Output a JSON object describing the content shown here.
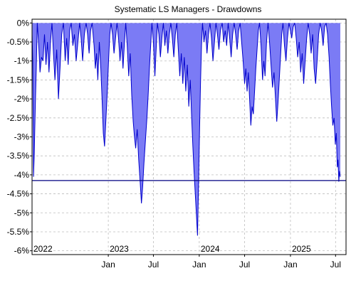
{
  "chart_data": {
    "type": "area",
    "title": "Systematic LS Managers - Drawdowns",
    "xlabel": "",
    "ylabel": "",
    "x_range": [
      "2022-03-01",
      "2025-08-12"
    ],
    "ylim": [
      -6.1,
      0.1
    ],
    "yticks": [
      {
        "value": 0,
        "label": "0%"
      },
      {
        "value": -0.5,
        "label": "-0.5%"
      },
      {
        "value": -1,
        "label": "-1%"
      },
      {
        "value": -1.5,
        "label": "-1.5%"
      },
      {
        "value": -2,
        "label": "-2%"
      },
      {
        "value": -2.5,
        "label": "-2.5%"
      },
      {
        "value": -3,
        "label": "-3%"
      },
      {
        "value": -3.5,
        "label": "-3.5%"
      },
      {
        "value": -4,
        "label": "-4%"
      },
      {
        "value": -4.5,
        "label": "-4.5%"
      },
      {
        "value": -5,
        "label": "-5%"
      },
      {
        "value": -5.5,
        "label": "-5.5%"
      },
      {
        "value": -6,
        "label": "-6%"
      }
    ],
    "xticks": [
      {
        "date": "2023-01-01",
        "label": "Jan"
      },
      {
        "date": "2023-07-01",
        "label": "Jul"
      },
      {
        "date": "2024-01-01",
        "label": "Jan"
      },
      {
        "date": "2024-07-01",
        "label": "Jul"
      },
      {
        "date": "2025-01-01",
        "label": "Jan"
      },
      {
        "date": "2025-07-01",
        "label": "Jul"
      }
    ],
    "year_labels": [
      {
        "date": "2022-03-01",
        "label": "2022"
      },
      {
        "date": "2023-01-01",
        "label": "2023"
      },
      {
        "date": "2024-01-01",
        "label": "2024"
      },
      {
        "date": "2025-01-01",
        "label": "2025"
      }
    ],
    "reference_line": {
      "value": -4.15
    },
    "grid": true,
    "colors": {
      "fill": "#7b7bf5",
      "line": "#0000cc",
      "reference": "#000080",
      "grid": "#bdbdbd"
    },
    "series": [
      {
        "points": [
          [
            "2022-03-01",
            -0.3
          ],
          [
            "2022-03-04",
            -1.0
          ],
          [
            "2022-03-07",
            -4.05
          ],
          [
            "2022-03-10",
            -3.4
          ],
          [
            "2022-03-14",
            -2.2
          ],
          [
            "2022-03-18",
            -1.2
          ],
          [
            "2022-03-22",
            0
          ],
          [
            "2022-03-28",
            -0.6
          ],
          [
            "2022-04-02",
            -1.3
          ],
          [
            "2022-04-08",
            -0.9
          ],
          [
            "2022-04-14",
            -1.0
          ],
          [
            "2022-04-20",
            -0.3
          ],
          [
            "2022-04-26",
            -1.1
          ],
          [
            "2022-05-02",
            -0.5
          ],
          [
            "2022-05-08",
            -1.3
          ],
          [
            "2022-05-14",
            -0.5
          ],
          [
            "2022-05-20",
            0
          ],
          [
            "2022-05-26",
            -0.8
          ],
          [
            "2022-06-01",
            -1.5
          ],
          [
            "2022-06-08",
            -0.7
          ],
          [
            "2022-06-15",
            -2.0
          ],
          [
            "2022-06-22",
            -1.1
          ],
          [
            "2022-06-28",
            -0.3
          ],
          [
            "2022-07-05",
            0
          ],
          [
            "2022-07-12",
            -1.0
          ],
          [
            "2022-07-18",
            -0.4
          ],
          [
            "2022-07-24",
            -1.1
          ],
          [
            "2022-07-30",
            -0.2
          ],
          [
            "2022-08-05",
            0
          ],
          [
            "2022-08-12",
            -0.6
          ],
          [
            "2022-08-18",
            -0.3
          ],
          [
            "2022-08-25",
            -1.0
          ],
          [
            "2022-09-01",
            -0.5
          ],
          [
            "2022-09-08",
            0
          ],
          [
            "2022-09-14",
            -0.4
          ],
          [
            "2022-09-20",
            -1.0
          ],
          [
            "2022-09-27",
            -0.3
          ],
          [
            "2022-10-04",
            0
          ],
          [
            "2022-10-10",
            -0.3
          ],
          [
            "2022-10-16",
            -0.8
          ],
          [
            "2022-10-22",
            -0.2
          ],
          [
            "2022-10-28",
            0
          ],
          [
            "2022-11-05",
            -0.6
          ],
          [
            "2022-11-10",
            -1.2
          ],
          [
            "2022-11-15",
            -0.8
          ],
          [
            "2022-11-20",
            -1.5
          ],
          [
            "2022-11-26",
            -0.5
          ],
          [
            "2022-12-02",
            -1.2
          ],
          [
            "2022-12-07",
            -2.0
          ],
          [
            "2022-12-12",
            -2.9
          ],
          [
            "2022-12-17",
            -3.25
          ],
          [
            "2022-12-22",
            -2.6
          ],
          [
            "2022-12-28",
            -1.8
          ],
          [
            "2023-01-02",
            -1.0
          ],
          [
            "2023-01-07",
            -0.3
          ],
          [
            "2023-01-12",
            0
          ],
          [
            "2023-01-18",
            -0.3
          ],
          [
            "2023-01-24",
            -0.8
          ],
          [
            "2023-01-30",
            -0.4
          ],
          [
            "2023-02-05",
            0
          ],
          [
            "2023-02-11",
            -0.4
          ],
          [
            "2023-02-17",
            -1.0
          ],
          [
            "2023-02-23",
            -0.5
          ],
          [
            "2023-03-01",
            -1.2
          ],
          [
            "2023-03-07",
            -0.5
          ],
          [
            "2023-03-12",
            0
          ],
          [
            "2023-03-18",
            -0.6
          ],
          [
            "2023-03-24",
            -1.4
          ],
          [
            "2023-03-30",
            -0.8
          ],
          [
            "2023-04-05",
            -1.9
          ],
          [
            "2023-04-11",
            -2.6
          ],
          [
            "2023-04-16",
            -3.0
          ],
          [
            "2023-04-21",
            -3.3
          ],
          [
            "2023-04-27",
            -2.8
          ],
          [
            "2023-05-03",
            -3.6
          ],
          [
            "2023-05-09",
            -4.2
          ],
          [
            "2023-05-14",
            -4.75
          ],
          [
            "2023-05-19",
            -4.3
          ],
          [
            "2023-05-24",
            -3.7
          ],
          [
            "2023-05-30",
            -3.1
          ],
          [
            "2023-06-05",
            -2.5
          ],
          [
            "2023-06-10",
            -1.9
          ],
          [
            "2023-06-15",
            -1.2
          ],
          [
            "2023-06-20",
            -0.6
          ],
          [
            "2023-06-25",
            0
          ],
          [
            "2023-07-01",
            -0.5
          ],
          [
            "2023-07-07",
            -1.4
          ],
          [
            "2023-07-12",
            -0.7
          ],
          [
            "2023-07-17",
            0
          ],
          [
            "2023-07-23",
            -0.3
          ],
          [
            "2023-07-29",
            -0.9
          ],
          [
            "2023-08-04",
            -0.4
          ],
          [
            "2023-08-10",
            0
          ],
          [
            "2023-08-16",
            -0.6
          ],
          [
            "2023-08-22",
            -0.2
          ],
          [
            "2023-08-28",
            -0.8
          ],
          [
            "2023-09-03",
            -0.3
          ],
          [
            "2023-09-09",
            0
          ],
          [
            "2023-09-15",
            -0.4
          ],
          [
            "2023-09-21",
            -0.9
          ],
          [
            "2023-09-27",
            -0.3
          ],
          [
            "2023-10-03",
            0
          ],
          [
            "2023-10-09",
            -0.7
          ],
          [
            "2023-10-15",
            -1.4
          ],
          [
            "2023-10-21",
            -0.8
          ],
          [
            "2023-10-27",
            -1.6
          ],
          [
            "2023-11-02",
            -0.9
          ],
          [
            "2023-11-08",
            -1.8
          ],
          [
            "2023-11-14",
            -1.1
          ],
          [
            "2023-11-20",
            -2.2
          ],
          [
            "2023-11-26",
            -1.5
          ],
          [
            "2023-12-01",
            -2.4
          ],
          [
            "2023-12-06",
            -3.2
          ],
          [
            "2023-12-11",
            -3.9
          ],
          [
            "2023-12-16",
            -4.5
          ],
          [
            "2023-12-21",
            -5.1
          ],
          [
            "2023-12-25",
            -5.6
          ],
          [
            "2023-12-29",
            -4.3
          ],
          [
            "2024-01-02",
            -2.9
          ],
          [
            "2024-01-06",
            -1.6
          ],
          [
            "2024-01-10",
            -0.6
          ],
          [
            "2024-01-14",
            0
          ],
          [
            "2024-01-20",
            -0.5
          ],
          [
            "2024-01-26",
            -0.2
          ],
          [
            "2024-02-01",
            -0.8
          ],
          [
            "2024-02-07",
            -0.3
          ],
          [
            "2024-02-13",
            0
          ],
          [
            "2024-02-19",
            -0.4
          ],
          [
            "2024-02-25",
            -1.0
          ],
          [
            "2024-03-02",
            -0.5
          ],
          [
            "2024-03-08",
            0
          ],
          [
            "2024-03-14",
            -0.3
          ],
          [
            "2024-03-20",
            -0.7
          ],
          [
            "2024-03-26",
            -0.2
          ],
          [
            "2024-04-02",
            0
          ],
          [
            "2024-04-08",
            -0.5
          ],
          [
            "2024-04-14",
            -0.2
          ],
          [
            "2024-04-20",
            -0.6
          ],
          [
            "2024-04-26",
            0
          ],
          [
            "2024-05-02",
            -0.4
          ],
          [
            "2024-05-08",
            -0.9
          ],
          [
            "2024-05-14",
            -0.3
          ],
          [
            "2024-05-20",
            0
          ],
          [
            "2024-05-26",
            -0.3
          ],
          [
            "2024-06-01",
            -0.7
          ],
          [
            "2024-06-07",
            -0.2
          ],
          [
            "2024-06-13",
            0
          ],
          [
            "2024-06-19",
            -0.5
          ],
          [
            "2024-06-25",
            -1.0
          ],
          [
            "2024-07-01",
            -1.6
          ],
          [
            "2024-07-06",
            -1.2
          ],
          [
            "2024-07-11",
            -1.8
          ],
          [
            "2024-07-16",
            -1.3
          ],
          [
            "2024-07-21",
            -2.0
          ],
          [
            "2024-07-26",
            -2.7
          ],
          [
            "2024-07-31",
            -2.2
          ],
          [
            "2024-08-05",
            -2.4
          ],
          [
            "2024-08-10",
            -1.8
          ],
          [
            "2024-08-15",
            -1.2
          ],
          [
            "2024-08-20",
            -0.7
          ],
          [
            "2024-08-25",
            -0.2
          ],
          [
            "2024-08-30",
            0
          ],
          [
            "2024-09-05",
            -0.6
          ],
          [
            "2024-09-11",
            -1.5
          ],
          [
            "2024-09-16",
            -1.0
          ],
          [
            "2024-09-21",
            -1.4
          ],
          [
            "2024-09-27",
            -0.5
          ],
          [
            "2024-10-03",
            0
          ],
          [
            "2024-10-09",
            -0.5
          ],
          [
            "2024-10-15",
            -1.1
          ],
          [
            "2024-10-21",
            -1.7
          ],
          [
            "2024-10-27",
            -1.3
          ],
          [
            "2024-11-02",
            -2.0
          ],
          [
            "2024-11-07",
            -2.6
          ],
          [
            "2024-11-12",
            -2.1
          ],
          [
            "2024-11-17",
            -1.5
          ],
          [
            "2024-11-22",
            -0.9
          ],
          [
            "2024-11-27",
            -0.3
          ],
          [
            "2024-12-02",
            0
          ],
          [
            "2024-12-08",
            -0.6
          ],
          [
            "2024-12-14",
            -1.0
          ],
          [
            "2024-12-20",
            -0.4
          ],
          [
            "2024-12-26",
            0
          ],
          [
            "2025-01-01",
            -0.2
          ],
          [
            "2025-01-06",
            -0.4
          ],
          [
            "2025-01-12",
            -0.1
          ],
          [
            "2025-01-18",
            0
          ],
          [
            "2025-01-24",
            -0.4
          ],
          [
            "2025-01-30",
            -0.9
          ],
          [
            "2025-02-05",
            -0.5
          ],
          [
            "2025-02-11",
            -1.3
          ],
          [
            "2025-02-17",
            -0.8
          ],
          [
            "2025-02-23",
            -1.6
          ],
          [
            "2025-03-01",
            -1.0
          ],
          [
            "2025-03-07",
            -0.4
          ],
          [
            "2025-03-13",
            0
          ],
          [
            "2025-03-19",
            -0.3
          ],
          [
            "2025-03-25",
            -0.8
          ],
          [
            "2025-03-31",
            -0.3
          ],
          [
            "2025-04-06",
            -1.2
          ],
          [
            "2025-04-12",
            -1.6
          ],
          [
            "2025-04-18",
            -1.0
          ],
          [
            "2025-04-24",
            -0.3
          ],
          [
            "2025-04-30",
            0
          ],
          [
            "2025-05-06",
            -0.2
          ],
          [
            "2025-05-12",
            -0.6
          ],
          [
            "2025-05-18",
            -0.1
          ],
          [
            "2025-05-24",
            0
          ],
          [
            "2025-05-30",
            -0.3
          ],
          [
            "2025-06-05",
            -0.9
          ],
          [
            "2025-06-10",
            -1.6
          ],
          [
            "2025-06-15",
            -2.2
          ],
          [
            "2025-06-20",
            -2.7
          ],
          [
            "2025-06-25",
            -2.5
          ],
          [
            "2025-06-30",
            -3.2
          ],
          [
            "2025-07-04",
            -2.9
          ],
          [
            "2025-07-08",
            -3.8
          ],
          [
            "2025-07-11",
            -3.6
          ],
          [
            "2025-07-14",
            -4.18
          ],
          [
            "2025-07-17",
            -3.9
          ],
          [
            "2025-07-20",
            -4.05
          ]
        ]
      }
    ]
  }
}
